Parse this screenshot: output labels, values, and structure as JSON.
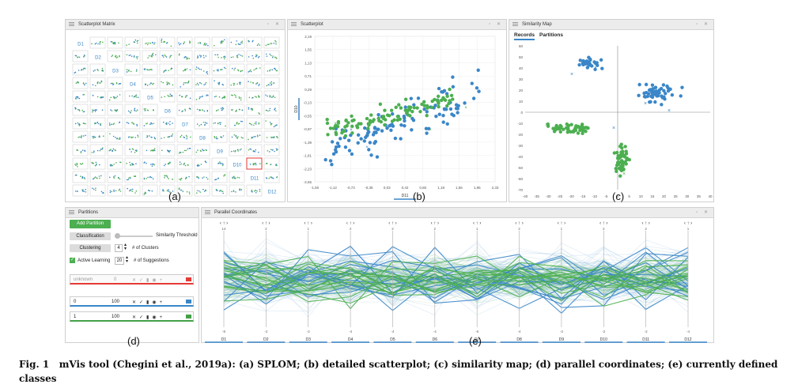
{
  "panels": {
    "splom_title": "Scatterplot Matrix",
    "scatter_title": "Scatterplot",
    "simmap_title": "Similarity Map",
    "partitions_title": "Partitions",
    "parcoords_title": "Parallel Coordinates"
  },
  "dims": [
    "D1",
    "D2",
    "D3",
    "D4",
    "D5",
    "D6",
    "D7",
    "D8",
    "D9",
    "D10",
    "D11",
    "D12"
  ],
  "splom": {
    "selected_cell": "D10 / D11"
  },
  "scatter": {
    "ylabel": "D10",
    "xlabel": "D11",
    "yticks": [
      "2,19",
      "1,55",
      "1,13",
      "0,71",
      "0,29",
      "-0,13",
      "-0,55",
      "-0,97",
      "-1,39",
      "-1,81",
      "-2,23",
      "-2,65"
    ],
    "xticks": [
      "-1,50",
      "-1,12",
      "-0,73",
      "-0,35",
      "0,03",
      "0,42",
      "0,80",
      "1,18",
      "1,56",
      "1,95",
      "2,33"
    ]
  },
  "simmap": {
    "tabs": [
      "Records",
      "Partitions"
    ],
    "yticks": [
      "60",
      "50",
      "40",
      "30",
      "20",
      "10",
      "0",
      "-10",
      "-20",
      "-30",
      "-40",
      "-50",
      "-60",
      "-70"
    ],
    "xticks": [
      "-40",
      "-35",
      "-30",
      "-25",
      "-20",
      "-15",
      "-10",
      "-5",
      "0",
      "5",
      "10",
      "15",
      "20",
      "25",
      "30",
      "35",
      "40"
    ]
  },
  "partitions": {
    "add_label": "Add Partition",
    "classification_label": "Classification",
    "similarity_label": "Similarity Threshold",
    "clustering_label": "Clustering",
    "clusters_value": "4",
    "clusters_label": "# of Clusters",
    "active_learning_label": "Active Learning",
    "suggestions_value": "20",
    "suggestions_label": "# of Suggestions",
    "rows": [
      {
        "name": "unknown",
        "count": "0",
        "color": "#e53935"
      },
      {
        "name": "0",
        "count": "100",
        "color": "#3a86c8"
      },
      {
        "name": "1",
        "count": "100",
        "color": "#43a047"
      }
    ]
  },
  "parcoords": {
    "top_ticks": [
      "14",
      "2",
      "1",
      "2",
      "2",
      "2",
      "1",
      "2",
      "1",
      "2",
      "2",
      "1"
    ],
    "bottom_ticks": [
      "-8",
      "-2",
      "-2",
      "-4",
      "-4",
      "-4",
      "-5",
      "-4",
      "-3",
      "-2",
      "-2",
      "-4"
    ]
  },
  "labels": [
    "(a)",
    "(b)",
    "(c)",
    "(d)",
    "(e)"
  ],
  "caption": {
    "fig": "Fig. 1",
    "text": "mVis tool (Chegini et al., 2019a): (a) SPLOM; (b) detailed scatterplot; (c) similarity map; (d) parallel coordinates; (e) currently defined classes"
  },
  "colors": {
    "blue": "#3a86c8",
    "green": "#4caf50",
    "panel_header": "#ececec"
  }
}
